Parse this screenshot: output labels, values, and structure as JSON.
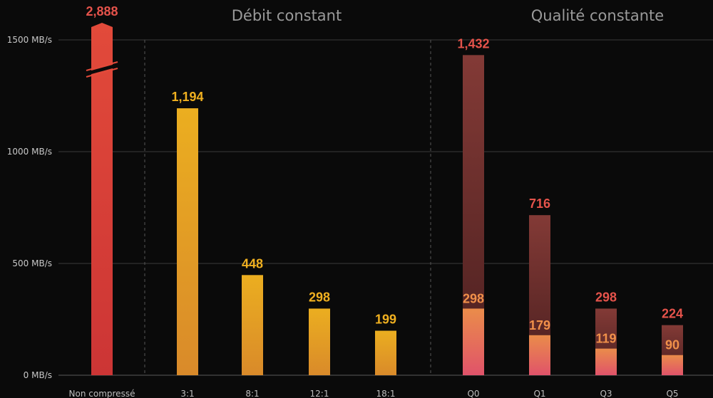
{
  "chart_data": {
    "type": "bar",
    "groups": [
      {
        "title": "",
        "categories": [
          "Non compressé"
        ]
      },
      {
        "title": "Débit constant",
        "categories": [
          "3:1",
          "8:1",
          "12:1",
          "18:1"
        ]
      },
      {
        "title": "Qualité constante",
        "categories": [
          "Q0",
          "Q1",
          "Q3",
          "Q5"
        ]
      }
    ],
    "categories": [
      "Non compressé",
      "3:1",
      "8:1",
      "12:1",
      "18:1",
      "Q0",
      "Q1",
      "Q3",
      "Q5"
    ],
    "values": [
      2888,
      1194,
      448,
      298,
      199,
      1432,
      716,
      298,
      224
    ],
    "value_labels": [
      "2,888",
      "1,194",
      "448",
      "298",
      "199",
      "1,432",
      "716",
      "298",
      "224"
    ],
    "inner_values": [
      null,
      null,
      null,
      null,
      null,
      298,
      179,
      119,
      90
    ],
    "inner_labels": [
      "",
      "",
      "",
      "",
      "",
      "298",
      "179",
      "119",
      "90"
    ],
    "ylim": [
      0,
      1500
    ],
    "y_ticks": [
      0,
      500,
      1000,
      1500
    ],
    "y_tick_labels": [
      "0 MB/s",
      "500 MB/s",
      "1000 MB/s",
      "1500 MB/s"
    ],
    "axis_break": "Non compressé bar truncated above 1500",
    "grid": true,
    "colors": {
      "uncompressed": "#e0483a",
      "cbr": "#e8a820",
      "quality_outer": "#7a3030",
      "quality_inner": "#e8884a",
      "label_red": "#e5534b",
      "label_yellow": "#f0b020",
      "label_orange": "#f0904a"
    }
  }
}
